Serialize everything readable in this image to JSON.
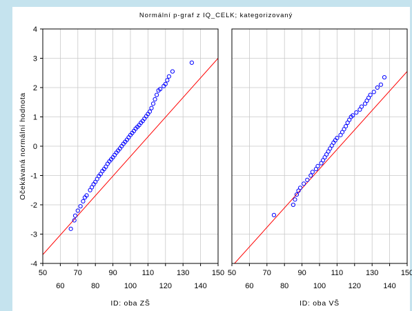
{
  "chart_data": {
    "type": "scatter",
    "title": "Normální p-graf z IQ_CELK; kategorizovaný",
    "ylabel": "Očekávaná normální hodnota",
    "ylim": [
      -4,
      4
    ],
    "y_ticks": [
      "4",
      "3",
      "2",
      "1",
      "0",
      "-1",
      "-2",
      "-3",
      "-4"
    ],
    "x_ticks_upper": [
      "50",
      "70",
      "90",
      "110",
      "130",
      "150"
    ],
    "x_ticks_lower": [
      "60",
      "80",
      "100",
      "120",
      "140"
    ],
    "xlim": [
      50,
      150
    ],
    "grid": true,
    "point_color": "#0000ff",
    "line_color": "#ff0000",
    "panels": [
      {
        "xlabel": "ID: oba ZŠ",
        "fit_line": {
          "x": [
            50,
            150
          ],
          "y": [
            -3.7,
            3.0
          ]
        },
        "points": [
          [
            66,
            -2.82
          ],
          [
            68,
            -2.53
          ],
          [
            68.5,
            -2.37
          ],
          [
            70,
            -2.2
          ],
          [
            71.5,
            -2.05
          ],
          [
            73,
            -1.88
          ],
          [
            74,
            -1.75
          ],
          [
            75,
            -1.68
          ],
          [
            77,
            -1.5
          ],
          [
            78,
            -1.4
          ],
          [
            79,
            -1.3
          ],
          [
            80,
            -1.22
          ],
          [
            81,
            -1.12
          ],
          [
            82,
            -1.02
          ],
          [
            83,
            -0.95
          ],
          [
            84,
            -0.85
          ],
          [
            85,
            -0.78
          ],
          [
            86,
            -0.7
          ],
          [
            87,
            -0.6
          ],
          [
            88,
            -0.52
          ],
          [
            89,
            -0.45
          ],
          [
            90,
            -0.38
          ],
          [
            91,
            -0.3
          ],
          [
            92,
            -0.22
          ],
          [
            93,
            -0.15
          ],
          [
            94,
            -0.08
          ],
          [
            95,
            0.0
          ],
          [
            96,
            0.08
          ],
          [
            97,
            0.15
          ],
          [
            98,
            0.22
          ],
          [
            99,
            0.3
          ],
          [
            100,
            0.38
          ],
          [
            101,
            0.45
          ],
          [
            102,
            0.52
          ],
          [
            103,
            0.6
          ],
          [
            104,
            0.66
          ],
          [
            105,
            0.72
          ],
          [
            106,
            0.8
          ],
          [
            107,
            0.86
          ],
          [
            108,
            0.94
          ],
          [
            109,
            1.02
          ],
          [
            110,
            1.1
          ],
          [
            111,
            1.18
          ],
          [
            112,
            1.3
          ],
          [
            113,
            1.45
          ],
          [
            114,
            1.6
          ],
          [
            115,
            1.75
          ],
          [
            116,
            1.9
          ],
          [
            117,
            1.95
          ],
          [
            119,
            2.05
          ],
          [
            120,
            2.12
          ],
          [
            121,
            2.25
          ],
          [
            122,
            2.38
          ],
          [
            124,
            2.55
          ],
          [
            135,
            2.85
          ]
        ]
      },
      {
        "xlabel": "ID: oba VŠ",
        "fit_line": {
          "x": [
            50,
            150
          ],
          "y": [
            -4.1,
            2.55
          ]
        },
        "points": [
          [
            74,
            -2.35
          ],
          [
            85,
            -2.0
          ],
          [
            86,
            -1.82
          ],
          [
            87,
            -1.65
          ],
          [
            88,
            -1.52
          ],
          [
            89,
            -1.42
          ],
          [
            91,
            -1.28
          ],
          [
            93,
            -1.15
          ],
          [
            95,
            -1.0
          ],
          [
            96,
            -0.88
          ],
          [
            98,
            -0.78
          ],
          [
            99,
            -0.68
          ],
          [
            101,
            -0.58
          ],
          [
            102,
            -0.48
          ],
          [
            103,
            -0.38
          ],
          [
            104,
            -0.28
          ],
          [
            105,
            -0.18
          ],
          [
            106,
            -0.08
          ],
          [
            107,
            0.02
          ],
          [
            108,
            0.12
          ],
          [
            109,
            0.2
          ],
          [
            110,
            0.28
          ],
          [
            112,
            0.38
          ],
          [
            113,
            0.48
          ],
          [
            114,
            0.58
          ],
          [
            115,
            0.68
          ],
          [
            116,
            0.8
          ],
          [
            117,
            0.9
          ],
          [
            118,
            1.0
          ],
          [
            119,
            1.05
          ],
          [
            121,
            1.15
          ],
          [
            123,
            1.25
          ],
          [
            124,
            1.35
          ],
          [
            126,
            1.45
          ],
          [
            127,
            1.55
          ],
          [
            128,
            1.65
          ],
          [
            129,
            1.75
          ],
          [
            131,
            1.85
          ],
          [
            133,
            2.0
          ],
          [
            135,
            2.1
          ],
          [
            137,
            2.35
          ]
        ]
      }
    ]
  }
}
